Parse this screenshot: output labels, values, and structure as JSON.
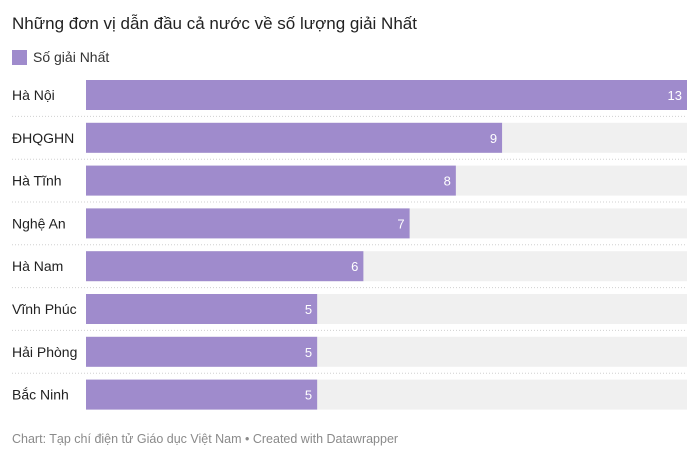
{
  "title": "Những đơn vị dẫn đầu cả nước về số lượng giải Nhất",
  "legend": {
    "label": "Số giải Nhất"
  },
  "footer": "Chart: Tạp chí điện tử Giáo dục Việt Nam • Created with Datawrapper",
  "colors": {
    "bar": "#9f8bcc",
    "track": "#f0f0f0",
    "value_label": "#ffffff",
    "category_label": "#222222",
    "divider": "#d0d0d0"
  },
  "chart_data": {
    "type": "bar",
    "orientation": "horizontal",
    "categories": [
      "Hà Nội",
      "ĐHQGHN",
      "Hà Tĩnh",
      "Nghệ An",
      "Hà Nam",
      "Vĩnh Phúc",
      "Hải Phòng",
      "Bắc Ninh"
    ],
    "series": [
      {
        "name": "Số giải Nhất",
        "values": [
          13,
          9,
          8,
          7,
          6,
          5,
          5,
          5
        ]
      }
    ],
    "xlim": [
      0,
      13
    ],
    "grid": false,
    "legend_position": "top-left"
  }
}
